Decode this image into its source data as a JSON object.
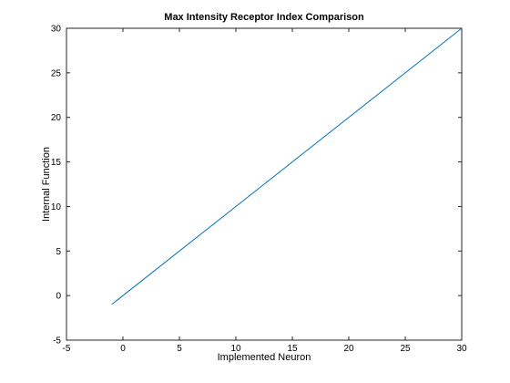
{
  "chart_data": {
    "type": "line",
    "title": "Max Intensity Receptor Index Comparison",
    "xlabel": "Implemented Neuron",
    "ylabel": "Internal Function",
    "xlim": [
      -5,
      30
    ],
    "ylim": [
      -5,
      30
    ],
    "xticks": [
      -5,
      0,
      5,
      10,
      15,
      20,
      25,
      30
    ],
    "yticks": [
      -5,
      0,
      5,
      10,
      15,
      20,
      25,
      30
    ],
    "grid": false,
    "series": [
      {
        "x": [
          -1,
          30
        ],
        "y": [
          -1,
          30
        ],
        "color": "#0072BD"
      }
    ]
  }
}
